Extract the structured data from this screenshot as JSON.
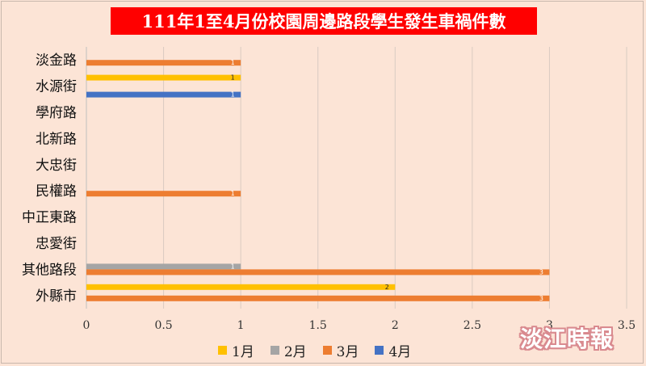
{
  "chart_data": {
    "type": "bar",
    "orientation": "horizontal",
    "title": "111年1至4月份校園周邊路段學生發生車禍件數",
    "categories": [
      "淡金路",
      "水源街",
      "學府路",
      "北新路",
      "大忠街",
      "民權路",
      "中正東路",
      "忠愛街",
      "其他路段",
      "外縣市"
    ],
    "series": [
      {
        "name": "1月",
        "color": "#ffc000",
        "values": [
          0,
          1,
          0,
          0,
          0,
          0,
          0,
          0,
          0,
          2
        ]
      },
      {
        "name": "2月",
        "color": "#a5a5a5",
        "values": [
          0,
          0,
          0,
          0,
          0,
          0,
          0,
          0,
          1,
          0
        ]
      },
      {
        "name": "3月",
        "color": "#ed7d31",
        "values": [
          1,
          0,
          0,
          0,
          0,
          1,
          0,
          0,
          3,
          3
        ]
      },
      {
        "name": "4月",
        "color": "#4472c4",
        "values": [
          0,
          1,
          0,
          0,
          0,
          0,
          0,
          0,
          0,
          0
        ]
      }
    ],
    "xlim": [
      0,
      3.5
    ],
    "xticks": [
      "0",
      "0.5",
      "1",
      "1.5",
      "2",
      "2.5",
      "3",
      "3.5"
    ],
    "grid": true,
    "legend_position": "bottom"
  },
  "watermark": "淡江時報"
}
